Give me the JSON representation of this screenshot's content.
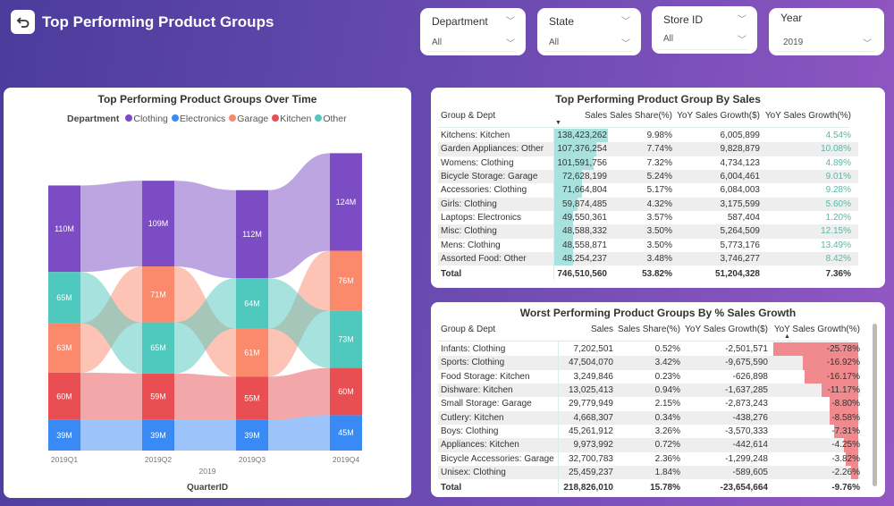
{
  "header": {
    "title": "Top Performing Product Groups",
    "back_icon": "back-arrow-icon"
  },
  "slicers": [
    {
      "label": "Department",
      "value": "All"
    },
    {
      "label": "State",
      "value": "All"
    },
    {
      "label": "Store ID",
      "value": "All"
    },
    {
      "label": "Year",
      "value": "2019"
    }
  ],
  "colors": {
    "Clothing": "#7b4cc4",
    "Electronics": "#3a8af5",
    "Garage": "#fb8a6c",
    "Kitchen": "#e94f52",
    "Other": "#4fc8bd",
    "top_bar": "#a8e2de",
    "worst_bar": "#f08a8e",
    "positive_text": "#5bb5a6"
  },
  "chart_data": {
    "type": "ribbon",
    "title": "Top Performing Product Groups Over Time",
    "legend_title": "Department",
    "legend_position": "top",
    "categories": [
      "2019Q1",
      "2019Q2",
      "2019Q3",
      "2019Q4"
    ],
    "category_group": "2019",
    "xlabel": "QuarterID",
    "unit": "M",
    "series": [
      {
        "name": "Clothing",
        "values": [
          110,
          109,
          112,
          124
        ]
      },
      {
        "name": "Electronics",
        "values": [
          39,
          39,
          39,
          45
        ]
      },
      {
        "name": "Garage",
        "values": [
          63,
          71,
          61,
          76
        ]
      },
      {
        "name": "Kitchen",
        "values": [
          60,
          59,
          55,
          60
        ]
      },
      {
        "name": "Other",
        "values": [
          65,
          65,
          64,
          73
        ]
      }
    ]
  },
  "top_table": {
    "title": "Top Performing Product Group By Sales",
    "columns": [
      "Group & Dept",
      "Sales",
      "Sales Share(%)",
      "YoY Sales Growth($)",
      "YoY Sales Growth(%)"
    ],
    "sort_column": "Sales",
    "rows": [
      [
        "Kitchens: Kitchen",
        "138,423,262",
        "9.98%",
        "6,005,899",
        "4.54%"
      ],
      [
        "Garden Appliances: Other",
        "107,376,254",
        "7.74%",
        "9,828,879",
        "10.08%"
      ],
      [
        "Womens: Clothing",
        "101,591,756",
        "7.32%",
        "4,734,123",
        "4.89%"
      ],
      [
        "Bicycle Storage: Garage",
        "72,628,199",
        "5.24%",
        "6,004,461",
        "9.01%"
      ],
      [
        "Accessories: Clothing",
        "71,664,804",
        "5.17%",
        "6,084,003",
        "9.28%"
      ],
      [
        "Girls: Clothing",
        "59,874,485",
        "4.32%",
        "3,175,599",
        "5.60%"
      ],
      [
        "Laptops: Electronics",
        "49,550,361",
        "3.57%",
        "587,404",
        "1.20%"
      ],
      [
        "Misc: Clothing",
        "48,588,332",
        "3.50%",
        "5,264,509",
        "12.15%"
      ],
      [
        "Mens: Clothing",
        "48,558,871",
        "3.50%",
        "5,773,176",
        "13.49%"
      ],
      [
        "Assorted Food: Other",
        "48,254,237",
        "3.48%",
        "3,746,277",
        "8.42%"
      ]
    ],
    "total": [
      "Total",
      "746,510,560",
      "53.82%",
      "51,204,328",
      "7.36%"
    ]
  },
  "worst_table": {
    "title": "Worst Performing Product Groups By % Sales Growth",
    "columns": [
      "Group & Dept",
      "Sales",
      "Sales Share(%)",
      "YoY Sales Growth($)",
      "YoY Sales Growth(%)"
    ],
    "sort_column": "YoY Sales Growth(%)",
    "rows": [
      [
        "Infants: Clothing",
        "7,202,501",
        "0.52%",
        "-2,501,571",
        "-25.78%"
      ],
      [
        "Sports: Clothing",
        "47,504,070",
        "3.42%",
        "-9,675,590",
        "-16.92%"
      ],
      [
        "Food Storage: Kitchen",
        "3,249,846",
        "0.23%",
        "-626,898",
        "-16.17%"
      ],
      [
        "Dishware: Kitchen",
        "13,025,413",
        "0.94%",
        "-1,637,285",
        "-11.17%"
      ],
      [
        "Small Storage: Garage",
        "29,779,949",
        "2.15%",
        "-2,873,243",
        "-8.80%"
      ],
      [
        "Cutlery: Kitchen",
        "4,668,307",
        "0.34%",
        "-438,276",
        "-8.58%"
      ],
      [
        "Boys: Clothing",
        "45,261,912",
        "3.26%",
        "-3,570,333",
        "-7.31%"
      ],
      [
        "Appliances: Kitchen",
        "9,973,992",
        "0.72%",
        "-442,614",
        "-4.25%"
      ],
      [
        "Bicycle Accessories: Garage",
        "32,700,783",
        "2.36%",
        "-1,299,248",
        "-3.82%"
      ],
      [
        "Unisex: Clothing",
        "25,459,237",
        "1.84%",
        "-589,605",
        "-2.26%"
      ]
    ],
    "total": [
      "Total",
      "218,826,010",
      "15.78%",
      "-23,654,664",
      "-9.76%"
    ]
  }
}
